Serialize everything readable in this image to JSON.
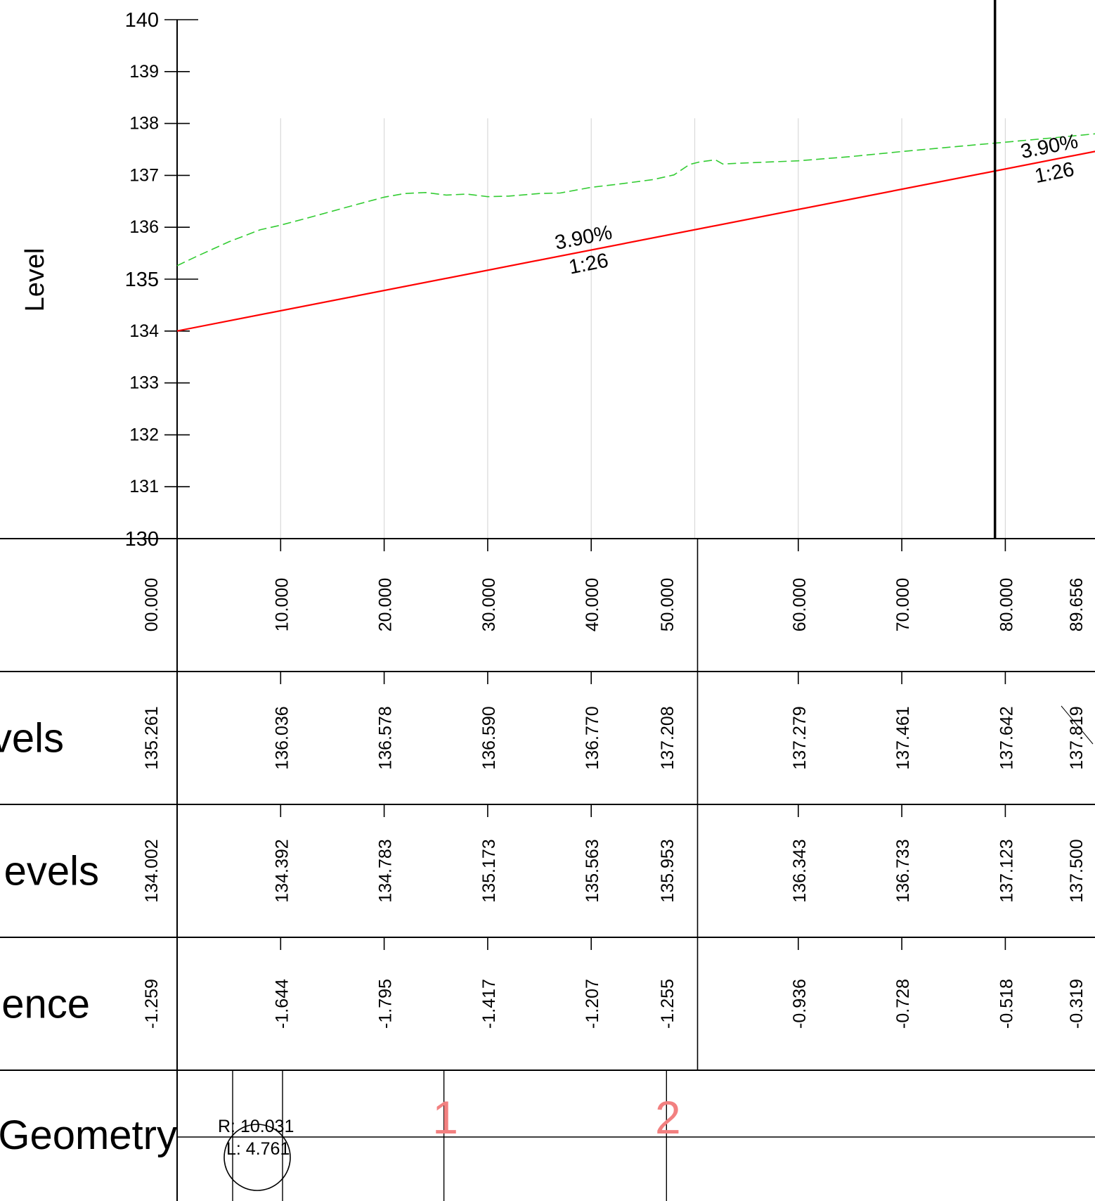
{
  "chart_data": {
    "type": "line",
    "title": "",
    "ylabel": "Level",
    "yticks": [
      130,
      131,
      132,
      133,
      134,
      135,
      136,
      137,
      138,
      139,
      140
    ],
    "ylim": [
      130,
      140
    ],
    "chainage_labels": [
      "00.000",
      "10.000",
      "20.000",
      "30.000",
      "40.000",
      "50.000",
      "60.000",
      "70.000",
      "80.000",
      "89.656"
    ],
    "chainage_values": [
      0,
      10,
      20,
      30,
      40,
      50,
      60,
      70,
      80,
      89.656
    ],
    "section_break_chainage": 50,
    "current_chainage": 79,
    "series": [
      {
        "key": "existing",
        "style": "green-dashed",
        "points": [
          [
            0,
            135.26
          ],
          [
            2,
            135.45
          ],
          [
            5,
            135.72
          ],
          [
            8,
            135.95
          ],
          [
            10,
            136.04
          ],
          [
            13,
            136.2
          ],
          [
            17,
            136.42
          ],
          [
            20,
            136.58
          ],
          [
            22,
            136.65
          ],
          [
            24,
            136.67
          ],
          [
            26,
            136.62
          ],
          [
            28,
            136.64
          ],
          [
            30,
            136.59
          ],
          [
            32,
            136.6
          ],
          [
            35,
            136.65
          ],
          [
            37,
            136.66
          ],
          [
            40,
            136.77
          ],
          [
            43,
            136.84
          ],
          [
            46,
            136.92
          ],
          [
            48,
            137.01
          ],
          [
            49.5,
            137.21
          ],
          [
            50.5,
            137.26
          ],
          [
            52,
            137.3
          ],
          [
            52.7,
            137.22
          ],
          [
            55,
            137.24
          ],
          [
            60,
            137.28
          ],
          [
            65,
            137.36
          ],
          [
            70,
            137.46
          ],
          [
            75,
            137.55
          ],
          [
            80,
            137.64
          ],
          [
            85,
            137.73
          ],
          [
            89.656,
            137.82
          ]
        ]
      },
      {
        "key": "design",
        "style": "red-solid",
        "points": [
          [
            0,
            134.002
          ],
          [
            89.656,
            137.5
          ]
        ]
      }
    ],
    "grade_labels": [
      {
        "grade": "3.90%",
        "ratio": "1:26",
        "chainage": 39.5
      },
      {
        "grade": "3.90%",
        "ratio": "1:26",
        "chainage": 84.5
      }
    ],
    "rows": [
      {
        "key": "existing_levels",
        "label": "vels",
        "values": [
          "135.261",
          "136.036",
          "136.578",
          "136.590",
          "136.770",
          "137.208",
          "137.279",
          "137.461",
          "137.642",
          "137.819"
        ]
      },
      {
        "key": "design_levels",
        "label": "evels",
        "values": [
          "134.002",
          "134.392",
          "134.783",
          "135.173",
          "135.563",
          "135.953",
          "136.343",
          "136.733",
          "137.123",
          "137.500"
        ]
      },
      {
        "key": "difference",
        "label": "ence",
        "values": [
          "-1.259",
          "-1.644",
          "-1.795",
          "-1.417",
          "-1.207",
          "-1.255",
          "-0.936",
          "-0.728",
          "-0.518",
          "-0.319"
        ]
      }
    ],
    "geometry": {
      "label": "Geometry",
      "curve_radius": "R: 10.031",
      "curve_length": "L: 4.761",
      "ip_markers": [
        "1",
        "2"
      ],
      "ip_chainages": [
        25.5,
        47
      ]
    }
  },
  "colors": {
    "design_line": "#ff0000",
    "existing_line": "#33cc33",
    "ip_marker": "#f28080",
    "grid": "#d9d9d9",
    "ink": "#000000"
  }
}
